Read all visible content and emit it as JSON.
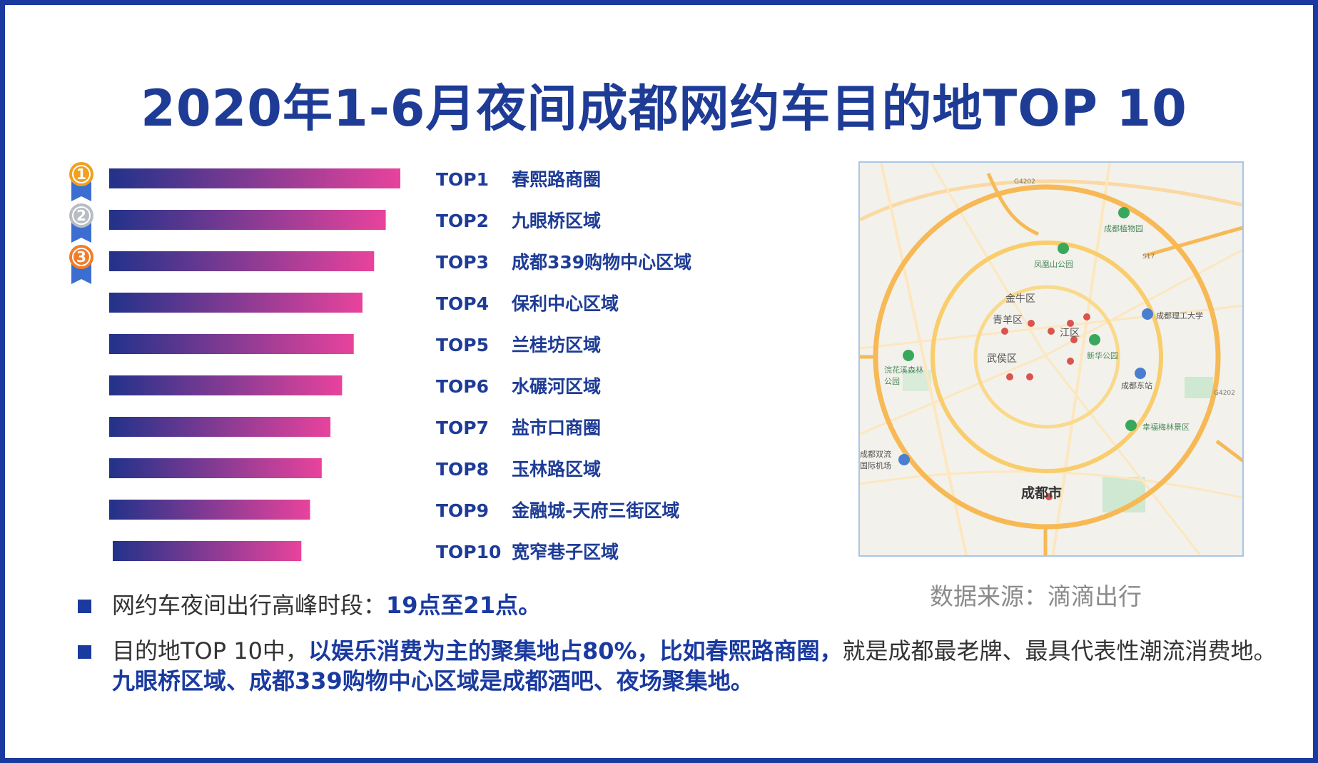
{
  "title": "2020年1-6月夜间成都网约车目的地TOP 10",
  "chart_data": {
    "type": "bar",
    "orientation": "horizontal",
    "title": "2020年1-6月夜间成都网约车目的地TOP 10",
    "categories": [
      "TOP1",
      "TOP2",
      "TOP3",
      "TOP4",
      "TOP5",
      "TOP6",
      "TOP7",
      "TOP8",
      "TOP9",
      "TOP10"
    ],
    "destinations": [
      "春熙路商圈",
      "九眼桥区域",
      "成都339购物中心区域",
      "保利中心区域",
      "兰桂坊区域",
      "水碾河区域",
      "盐市口商圈",
      "玉林路区域",
      "金融城-天府三街区域",
      "宽窄巷子区域"
    ],
    "values": [
      100,
      95,
      91,
      87,
      84,
      80,
      76,
      73,
      69,
      66
    ],
    "value_note": "relative bar lengths, unlabeled",
    "gradient": [
      "#22328a",
      "#e8439c"
    ],
    "medals": [
      "1",
      "2",
      "3"
    ],
    "medal_colors": [
      "#f0a01e",
      "#b8bcc4",
      "#ef7d2a"
    ]
  },
  "map": {
    "labels": {
      "jinniu": "金牛区",
      "qingyang": "青羊区",
      "jinjiang": "江区",
      "wuhou": "武侯区",
      "chengdu": "成都市",
      "zoo": "成都植物园",
      "fenghuang": "凤凰山公园",
      "ligong": "成都理工大学",
      "xinhua": "新华公园",
      "huanhuaxi": "浣花溪森林公园",
      "east_station": "成都东站",
      "xingfu": "幸福梅林景区",
      "airport": "成都双流国际机场",
      "g4202_top": "G4202",
      "g4202_right": "G4202",
      "s17": "S17"
    }
  },
  "source": "数据来源：滴滴出行",
  "bullets": [
    [
      {
        "text": "网约车夜间出行高峰时段：",
        "hl": false
      },
      {
        "text": "19点至21点。",
        "hl": true
      }
    ],
    [
      {
        "text": "目的地TOP 10中，",
        "hl": false
      },
      {
        "text": "以娱乐消费为主的聚集地占80%，比如春熙路商圈，",
        "hl": true
      },
      {
        "text": "就是成都最老牌、最具代表性潮流消费地。",
        "hl": false
      },
      {
        "text": "九眼桥区域、成都339购物中心区域是成都酒吧、夜场聚集地。",
        "hl": true
      }
    ]
  ]
}
